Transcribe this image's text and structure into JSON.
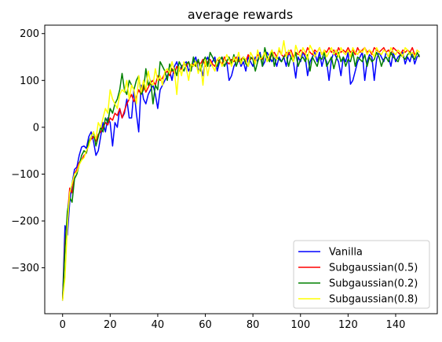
{
  "chart_data": {
    "type": "line",
    "title": "average rewards",
    "xlabel": "",
    "ylabel": "",
    "xlim": [
      -7.5,
      157.5
    ],
    "ylim": [
      -398,
      218
    ],
    "xticks": [
      0,
      20,
      40,
      60,
      80,
      100,
      120,
      140
    ],
    "yticks": [
      -300,
      -200,
      -100,
      0,
      100,
      200
    ],
    "legend_position": "bottom-right",
    "grid": false,
    "series": [
      {
        "name": "Vanilla",
        "color": "#0000ff",
        "values": [
          -370,
          -210,
          -230,
          -160,
          -120,
          -90,
          -85,
          -60,
          -42,
          -40,
          -45,
          -20,
          -10,
          -30,
          -60,
          -50,
          -20,
          10,
          -10,
          20,
          10,
          -40,
          10,
          0,
          40,
          20,
          30,
          60,
          20,
          20,
          80,
          30,
          -10,
          90,
          60,
          50,
          70,
          80,
          90,
          70,
          40,
          80,
          90,
          100,
          110,
          120,
          100,
          130,
          140,
          120,
          130,
          135,
          140,
          120,
          130,
          140,
          150,
          120,
          130,
          110,
          140,
          150,
          130,
          140,
          150,
          120,
          140,
          150,
          130,
          140,
          100,
          110,
          130,
          140,
          150,
          130,
          140,
          120,
          150,
          140,
          130,
          150,
          140,
          160,
          130,
          140,
          160,
          150,
          140,
          150,
          130,
          150,
          140,
          150,
          130,
          160,
          150,
          140,
          105,
          150,
          140,
          160,
          150,
          110,
          140,
          150,
          160,
          140,
          160,
          130,
          150,
          140,
          100,
          145,
          160,
          150,
          140,
          110,
          150,
          140,
          160,
          92,
          100,
          120,
          140,
          150,
          160,
          100,
          140,
          155,
          150,
          100,
          145,
          160,
          150,
          140,
          160,
          150,
          130,
          160,
          140,
          150,
          155,
          160,
          135,
          150,
          140,
          160,
          135,
          150,
          155
        ]
      },
      {
        "name": "Subgaussian(0.5)",
        "color": "#ff0000",
        "values": [
          -370,
          -250,
          -190,
          -130,
          -140,
          -100,
          -90,
          -75,
          -70,
          -60,
          -55,
          -35,
          -25,
          -20,
          -30,
          -15,
          -10,
          0,
          10,
          5,
          20,
          15,
          30,
          25,
          40,
          20,
          35,
          50,
          60,
          70,
          55,
          65,
          80,
          70,
          90,
          75,
          85,
          95,
          100,
          90,
          110,
          100,
          105,
          115,
          120,
          110,
          125,
          115,
          130,
          120,
          125,
          135,
          130,
          140,
          125,
          135,
          130,
          140,
          135,
          145,
          130,
          140,
          145,
          135,
          130,
          145,
          140,
          135,
          150,
          140,
          135,
          145,
          140,
          150,
          140,
          145,
          150,
          140,
          155,
          145,
          150,
          140,
          155,
          150,
          145,
          160,
          150,
          145,
          155,
          160,
          150,
          165,
          155,
          150,
          160,
          155,
          165,
          150,
          160,
          155,
          165,
          160,
          155,
          170,
          160,
          155,
          165,
          160,
          170,
          155,
          165,
          160,
          170,
          160,
          165,
          155,
          170,
          160,
          165,
          160,
          170,
          160,
          165,
          155,
          170,
          160,
          165,
          170,
          160,
          165,
          155,
          170,
          165,
          160,
          165,
          170,
          160,
          165,
          155,
          170,
          165,
          160,
          155,
          165,
          160,
          165,
          160,
          170,
          155,
          160,
          150
        ]
      },
      {
        "name": "Subgaussian(0.2)",
        "color": "#008000",
        "values": [
          -370,
          -260,
          -180,
          -150,
          -160,
          -110,
          -100,
          -80,
          -60,
          -50,
          -55,
          -30,
          -20,
          -10,
          -40,
          -20,
          0,
          -10,
          20,
          10,
          40,
          30,
          50,
          60,
          80,
          115,
          80,
          70,
          100,
          90,
          80,
          100,
          110,
          70,
          80,
          125,
          90,
          100,
          50,
          90,
          80,
          140,
          130,
          120,
          100,
          135,
          120,
          125,
          110,
          140,
          130,
          120,
          135,
          140,
          120,
          150,
          130,
          145,
          120,
          140,
          150,
          130,
          160,
          150,
          140,
          130,
          145,
          150,
          130,
          140,
          150,
          135,
          155,
          130,
          145,
          140,
          150,
          135,
          130,
          150,
          145,
          120,
          140,
          155,
          130,
          170,
          150,
          140,
          165,
          130,
          150,
          145,
          140,
          150,
          155,
          130,
          150,
          140,
          160,
          130,
          145,
          150,
          140,
          155,
          120,
          150,
          140,
          130,
          150,
          145,
          160,
          130,
          140,
          150,
          125,
          145,
          160,
          140,
          150,
          130,
          145,
          140,
          160,
          130,
          150,
          145,
          140,
          155,
          130,
          150,
          140,
          145,
          160,
          150,
          130,
          145,
          150,
          140,
          160,
          150,
          145,
          140,
          155,
          150,
          145,
          155,
          160,
          150,
          145,
          160,
          150
        ]
      },
      {
        "name": "Subgaussian(0.8)",
        "color": "#ffff00",
        "values": [
          -370,
          -320,
          -210,
          -140,
          -120,
          -100,
          -95,
          -80,
          -70,
          -65,
          -50,
          -40,
          -20,
          -10,
          -25,
          10,
          0,
          20,
          40,
          30,
          80,
          60,
          50,
          40,
          70,
          80,
          75,
          100,
          60,
          90,
          80,
          50,
          110,
          75,
          100,
          80,
          120,
          95,
          90,
          125,
          100,
          110,
          90,
          120,
          125,
          115,
          140,
          120,
          70,
          130,
          110,
          140,
          125,
          100,
          135,
          130,
          140,
          115,
          135,
          90,
          145,
          110,
          140,
          130,
          120,
          145,
          150,
          130,
          140,
          155,
          145,
          130,
          150,
          140,
          160,
          135,
          150,
          145,
          130,
          160,
          150,
          135,
          165,
          145,
          150,
          160,
          140,
          155,
          165,
          150,
          145,
          170,
          155,
          185,
          150,
          165,
          160,
          140,
          175,
          160,
          150,
          170,
          160,
          145,
          175,
          165,
          150,
          160,
          170,
          155,
          165,
          150,
          160,
          170,
          155,
          165,
          150,
          170,
          160,
          155,
          165,
          150,
          170,
          160,
          155,
          165,
          160,
          170,
          155,
          165,
          160,
          150,
          170,
          160,
          155,
          165,
          160,
          150,
          170,
          160,
          155,
          165,
          160,
          150,
          170,
          165,
          155,
          160,
          150,
          165,
          160
        ]
      }
    ]
  }
}
